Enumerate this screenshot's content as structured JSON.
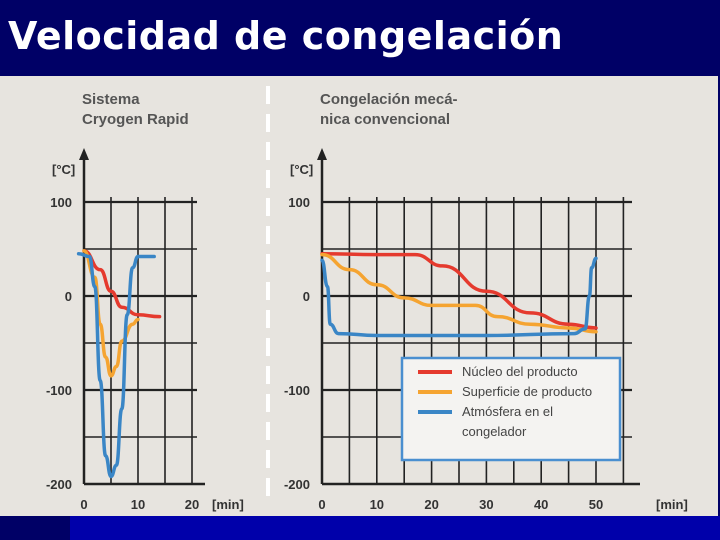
{
  "slide": {
    "title": "Velocidad de congelación"
  },
  "colors": {
    "background": "#000066",
    "figure_bg": "#e7e4df",
    "nucleo": "#e53a2e",
    "superficie": "#f5a431",
    "atmosfera": "#3a86c6",
    "legend_border": "#4a8fd0"
  },
  "legend": {
    "entries": [
      {
        "lines": [
          "Núcleo del producto"
        ],
        "color": "#e53a2e"
      },
      {
        "lines": [
          "Superficie de producto"
        ],
        "color": "#f5a431"
      },
      {
        "lines": [
          "Atmósfera en el",
          "congelador"
        ],
        "color": "#3a86c6"
      }
    ]
  },
  "chart_data": [
    {
      "type": "line",
      "title_lines": [
        "Sistema",
        "Cryogen Rapid"
      ],
      "ylabel": "[°C]",
      "xlabel": "[min]",
      "xlim": [
        0,
        20
      ],
      "ylim": [
        -200,
        100
      ],
      "xticks": [
        0,
        10,
        20
      ],
      "yticks": [
        100,
        0,
        -100,
        -200
      ],
      "grid": true,
      "series": [
        {
          "name": "Núcleo del producto",
          "color": "#e53a2e",
          "points": [
            [
              0,
              48
            ],
            [
              3,
              28
            ],
            [
              5,
              5
            ],
            [
              7,
              -12
            ],
            [
              10,
              -20
            ],
            [
              14,
              -22
            ]
          ]
        },
        {
          "name": "Superficie de producto",
          "color": "#f5a431",
          "points": [
            [
              0,
              48
            ],
            [
              2,
              20
            ],
            [
              3,
              -30
            ],
            [
              4,
              -65
            ],
            [
              5,
              -85
            ],
            [
              6,
              -75
            ],
            [
              7,
              -48
            ],
            [
              9,
              -30
            ],
            [
              10,
              -25
            ]
          ]
        },
        {
          "name": "Atmósfera en el congelador",
          "color": "#3a86c6",
          "points": [
            [
              -1,
              45
            ],
            [
              1,
              42
            ],
            [
              2,
              10
            ],
            [
              3,
              -90
            ],
            [
              4,
              -170
            ],
            [
              5,
              -192
            ],
            [
              6,
              -180
            ],
            [
              7,
              -120
            ],
            [
              8,
              -20
            ],
            [
              9,
              30
            ],
            [
              10,
              42
            ],
            [
              13,
              42
            ]
          ]
        }
      ]
    },
    {
      "type": "line",
      "title_lines": [
        "Congelación mecá-",
        "nica convencional"
      ],
      "ylabel": "[°C]",
      "xlabel": "[min]",
      "xlim": [
        0,
        50
      ],
      "ylim": [
        -200,
        100
      ],
      "xticks": [
        0,
        10,
        20,
        30,
        40,
        50
      ],
      "yticks": [
        100,
        0,
        -100,
        -200
      ],
      "grid": true,
      "series": [
        {
          "name": "Núcleo del producto",
          "color": "#e53a2e",
          "points": [
            [
              0,
              45
            ],
            [
              10,
              44
            ],
            [
              17,
              44
            ],
            [
              22,
              32
            ],
            [
              30,
              5
            ],
            [
              38,
              -18
            ],
            [
              45,
              -30
            ],
            [
              50,
              -34
            ]
          ]
        },
        {
          "name": "Superficie de producto",
          "color": "#f5a431",
          "points": [
            [
              0,
              44
            ],
            [
              5,
              28
            ],
            [
              10,
              12
            ],
            [
              15,
              -2
            ],
            [
              20,
              -10
            ],
            [
              28,
              -10
            ],
            [
              32,
              -22
            ],
            [
              38,
              -30
            ],
            [
              45,
              -34
            ],
            [
              50,
              -38
            ]
          ]
        },
        {
          "name": "Atmósfera en el congelador",
          "color": "#3a86c6",
          "points": [
            [
              0,
              38
            ],
            [
              1,
              10
            ],
            [
              1.5,
              -30
            ],
            [
              3,
              -40
            ],
            [
              10,
              -42
            ],
            [
              30,
              -42
            ],
            [
              46,
              -40
            ],
            [
              48,
              -35
            ],
            [
              48.8,
              0
            ],
            [
              49.2,
              30
            ],
            [
              50,
              40
            ]
          ]
        }
      ]
    }
  ]
}
